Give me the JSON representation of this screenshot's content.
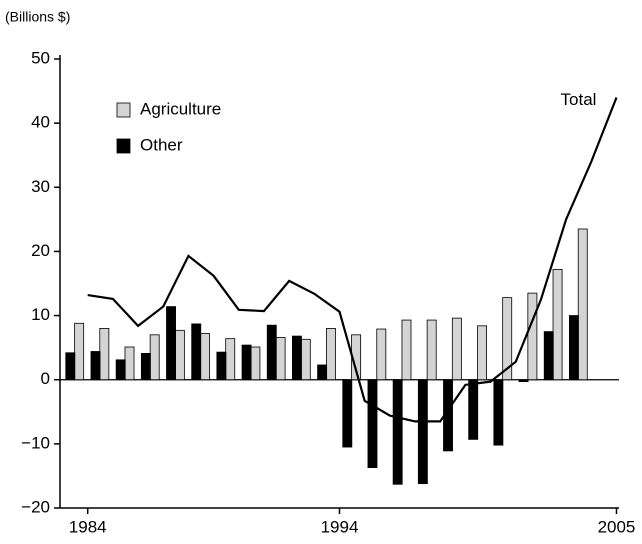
{
  "chart_data": {
    "type": "bar",
    "y_label": "(Billions $)",
    "x": [
      1984,
      1985,
      1986,
      1987,
      1988,
      1989,
      1990,
      1991,
      1992,
      1993,
      1994,
      1995,
      1996,
      1997,
      1998,
      1999,
      2000,
      2001,
      2002,
      2003,
      2004,
      2005
    ],
    "series": [
      {
        "name": "Agriculture",
        "color": "#d4d4d4",
        "values": [
          8.8,
          8.0,
          5.1,
          7.0,
          7.7,
          7.2,
          6.4,
          5.1,
          6.6,
          6.3,
          8.0,
          7.0,
          7.9,
          9.3,
          9.3,
          9.6,
          8.4,
          12.8,
          13.5,
          17.2,
          23.5,
          null
        ]
      },
      {
        "name": "Other",
        "color": "#000000",
        "values": [
          4.2,
          4.4,
          3.1,
          4.1,
          11.4,
          8.7,
          4.3,
          5.4,
          8.5,
          6.8,
          2.3,
          -10.5,
          -13.7,
          -16.3,
          -16.2,
          -11.1,
          -9.3,
          -10.2,
          -0.3,
          7.5,
          10.0,
          null
        ]
      },
      {
        "name": "Total",
        "type": "line",
        "color": "#000000",
        "values": [
          13.2,
          12.6,
          8.4,
          11.4,
          19.3,
          16.2,
          10.9,
          10.7,
          15.4,
          13.4,
          10.6,
          -3.3,
          -5.6,
          -6.5,
          -6.5,
          -0.8,
          -0.3,
          2.8,
          12.5,
          25,
          34,
          44
        ]
      }
    ],
    "xlim": [
      1982.9,
      2005.1
    ],
    "xticks": [
      1984,
      1994,
      2005
    ],
    "ylim": [
      -20,
      50
    ],
    "yticks": [
      {
        "value": -20,
        "label": "−20"
      },
      {
        "value": -10,
        "label": "−10"
      },
      0,
      10,
      20,
      30,
      40,
      50
    ],
    "legend": "upper left"
  }
}
